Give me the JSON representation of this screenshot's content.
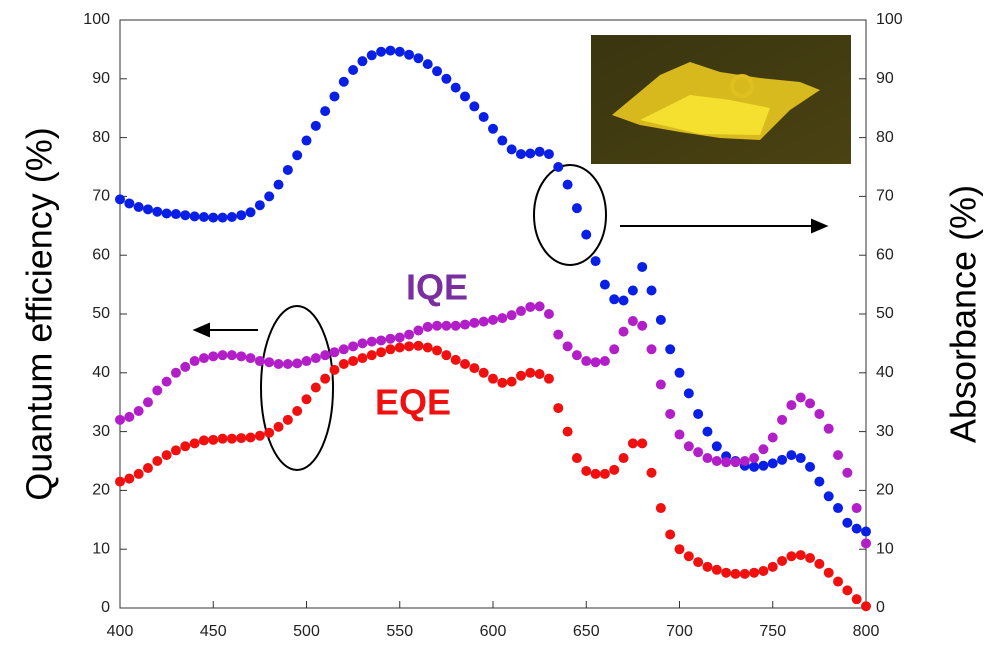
{
  "chart_data": {
    "type": "scatter",
    "y_label": "Quantum efficiency (%)",
    "y2_label": "Absorbance (%)",
    "x": [
      400,
      405,
      410,
      415,
      420,
      425,
      430,
      435,
      440,
      445,
      450,
      455,
      460,
      465,
      470,
      475,
      480,
      485,
      490,
      495,
      500,
      505,
      510,
      515,
      520,
      525,
      530,
      535,
      540,
      545,
      550,
      555,
      560,
      565,
      570,
      575,
      580,
      585,
      590,
      595,
      600,
      605,
      610,
      615,
      620,
      625,
      630,
      635,
      640,
      645,
      650,
      655,
      660,
      665,
      670,
      675,
      680,
      685,
      690,
      695,
      700,
      705,
      710,
      715,
      720,
      725,
      730,
      735,
      740,
      745,
      750,
      755,
      760,
      765,
      770,
      775,
      780,
      785,
      790,
      795,
      800
    ],
    "xlim": [
      400,
      800
    ],
    "xticks": [
      400,
      450,
      500,
      550,
      600,
      650,
      700,
      750,
      800
    ],
    "ylim": [
      0,
      100
    ],
    "yticks": [
      0,
      10,
      20,
      30,
      40,
      50,
      60,
      70,
      80,
      90,
      100
    ],
    "y2lim": [
      0,
      100
    ],
    "y2ticks": [
      0,
      10,
      20,
      30,
      40,
      50,
      60,
      70,
      80,
      90,
      100
    ],
    "series": [
      {
        "color": "#0a1fe6",
        "axis": "y2",
        "values": [
          69.5,
          68.8,
          68.2,
          67.8,
          67.4,
          67.1,
          67,
          66.8,
          66.6,
          66.5,
          66.4,
          66.4,
          66.5,
          66.8,
          67.3,
          68.5,
          70,
          72,
          74.5,
          77,
          79.5,
          82,
          84.5,
          87,
          89.5,
          91.5,
          93,
          94,
          94.6,
          94.8,
          94.6,
          94.1,
          93.5,
          92.5,
          91.3,
          90,
          88.5,
          87,
          85.3,
          83.5,
          81.5,
          79.5,
          78,
          77.2,
          77.3,
          77.6,
          77.2,
          75,
          72,
          68,
          63.5,
          59,
          55,
          52.5,
          52.3,
          54,
          58,
          54,
          49,
          44,
          40,
          36.5,
          33,
          30,
          27.5,
          25.8,
          25,
          24.2,
          24,
          24.2,
          24.6,
          25.2,
          26,
          25.5,
          24,
          21.5,
          19,
          17,
          14.5,
          13.5,
          13
        ]
      },
      {
        "name": "IQE",
        "color": "#b21fc8",
        "values": [
          32,
          32.5,
          33.5,
          35,
          37,
          38.5,
          40,
          41,
          42,
          42.5,
          42.8,
          43,
          43,
          42.8,
          42.5,
          42,
          41.8,
          41.5,
          41.5,
          41.6,
          42,
          42.5,
          43,
          43.5,
          44,
          44.5,
          45,
          45.3,
          45.5,
          45.8,
          46,
          46.5,
          47.2,
          47.8,
          48,
          48,
          48,
          48.2,
          48.5,
          48.7,
          49,
          49.3,
          49.8,
          50.5,
          51.2,
          51.3,
          50,
          46.5,
          44.5,
          43,
          42,
          41.8,
          42,
          44,
          47,
          48.8,
          48,
          44,
          38,
          33,
          29.5,
          27.5,
          26.5,
          25.5,
          25,
          24.8,
          24.8,
          25,
          25.5,
          27,
          29,
          32,
          34.5,
          35.8,
          34.8,
          33,
          30.5,
          26,
          23,
          17,
          11
        ]
      },
      {
        "name": "EQE",
        "color": "#f01010",
        "values": [
          21.5,
          22,
          22.8,
          23.8,
          25,
          26,
          26.8,
          27.5,
          28,
          28.5,
          28.6,
          28.8,
          28.8,
          28.9,
          29,
          29.3,
          29.8,
          30.8,
          32,
          33.5,
          35.5,
          37.5,
          39,
          40.5,
          41.5,
          42,
          42.5,
          43,
          43.5,
          44,
          44.3,
          44.5,
          44.6,
          44.3,
          43.8,
          43,
          42.2,
          41.5,
          40.8,
          40,
          39,
          38.3,
          38.5,
          39.5,
          40,
          39.8,
          39,
          34,
          30,
          25.5,
          23.3,
          22.8,
          22.8,
          23.5,
          25.5,
          28,
          28,
          23,
          17,
          12.5,
          10,
          8.8,
          7.8,
          7,
          6.5,
          6,
          5.8,
          5.8,
          6,
          6.3,
          7,
          8,
          8.8,
          9,
          8.5,
          7.5,
          6,
          4.5,
          3,
          1.5,
          0.3
        ]
      }
    ]
  }
}
